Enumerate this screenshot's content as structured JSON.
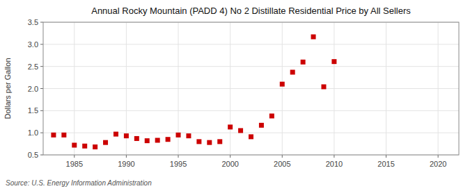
{
  "chart_data": {
    "type": "scatter",
    "title": "Annual Rocky Mountain (PADD 4) No 2 Distillate Residential Price by All Sellers",
    "ylabel": "Dollars per Gallon",
    "annotations": [
      "Source: U.S. Energy Information Administration"
    ],
    "x": [
      1983,
      1984,
      1985,
      1986,
      1987,
      1988,
      1989,
      1990,
      1991,
      1992,
      1993,
      1994,
      1995,
      1996,
      1997,
      1998,
      1999,
      2000,
      2001,
      2002,
      2003,
      2004,
      2005,
      2006,
      2007,
      2008,
      2009,
      2010
    ],
    "values": [
      0.95,
      0.95,
      0.72,
      0.7,
      0.68,
      0.78,
      0.97,
      0.93,
      0.87,
      0.82,
      0.83,
      0.85,
      0.95,
      0.93,
      0.8,
      0.78,
      0.8,
      1.13,
      1.05,
      0.91,
      1.17,
      1.38,
      2.1,
      2.37,
      2.6,
      3.17,
      2.04,
      2.61
    ],
    "color": "#cc0000",
    "marker": "square",
    "xlim": [
      1982,
      2022
    ],
    "ylim": [
      0.5,
      3.5
    ],
    "xticks": [
      1985,
      1990,
      1995,
      2000,
      2005,
      2010,
      2015,
      2020
    ],
    "yticks": [
      0.5,
      {
        "value": 1.0,
        "label": "1.0"
      },
      1.5,
      {
        "value": 2.0,
        "label": "2.0"
      },
      2.5,
      {
        "value": 3.0,
        "label": "3.0"
      },
      3.5
    ],
    "grid": true
  }
}
